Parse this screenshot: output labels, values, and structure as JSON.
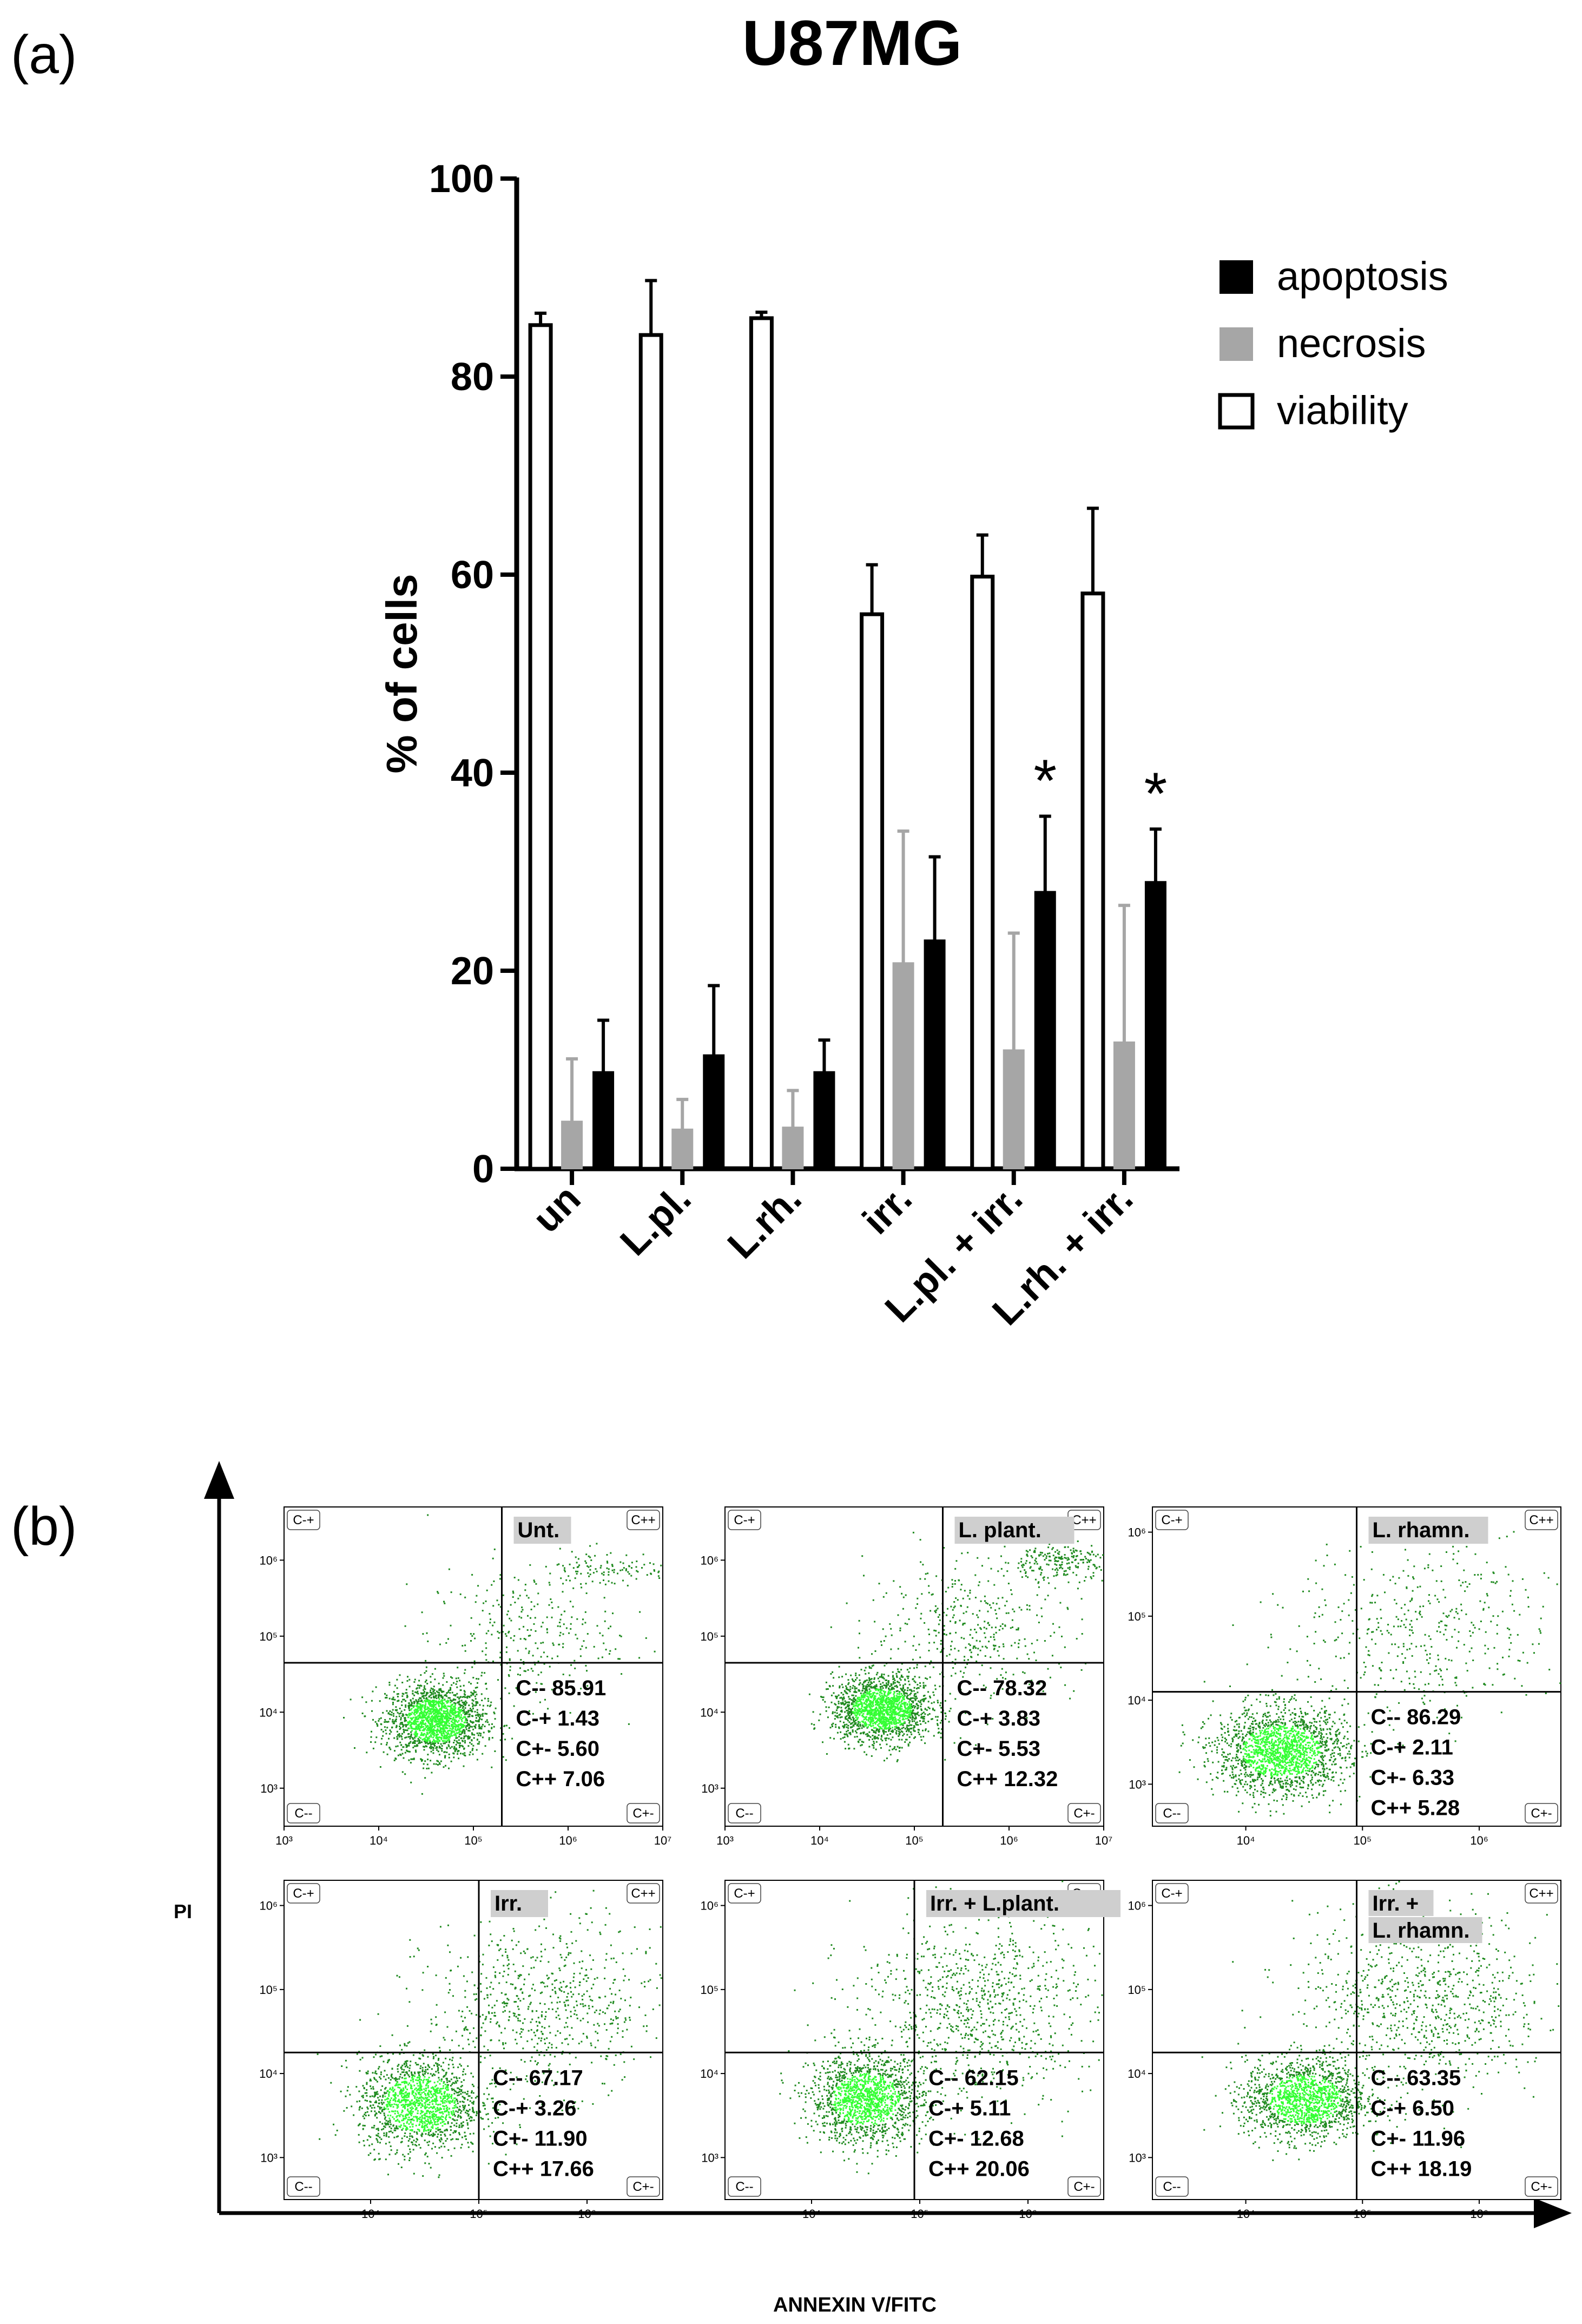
{
  "figure": {
    "panel_a_letter": "(a)",
    "panel_b_letter": "(b)"
  },
  "chart_data": [
    {
      "type": "bar",
      "title": "U87MG",
      "xlabel": "",
      "ylabel": "% of cells",
      "ylim": [
        0,
        100
      ],
      "yticks": [
        0,
        20,
        40,
        60,
        80,
        100
      ],
      "categories": [
        "un",
        "L.pl.",
        "L.rh.",
        "irr.",
        "L.pl. + irr.",
        "L.rh. + irr."
      ],
      "legend_position": "top-right",
      "series": [
        {
          "name": "viability",
          "color": "#ffffff",
          "values": [
            85.2,
            84.2,
            85.9,
            56.0,
            59.8,
            58.1
          ],
          "errors": [
            1.2,
            5.5,
            0.6,
            5.0,
            4.2,
            8.6
          ]
        },
        {
          "name": "necrosis",
          "color": "#a6a6a6",
          "values": [
            4.8,
            4.0,
            4.2,
            20.8,
            12.0,
            12.8
          ],
          "errors": [
            6.3,
            3.0,
            3.7,
            13.3,
            11.8,
            13.8
          ]
        },
        {
          "name": "apoptosis",
          "color": "#000000",
          "values": [
            9.8,
            11.5,
            9.8,
            23.1,
            28.0,
            29.0
          ],
          "errors": [
            5.2,
            7.0,
            3.2,
            8.4,
            7.6,
            5.3
          ]
        }
      ],
      "legend_order": [
        "apoptosis",
        "necrosis",
        "viability"
      ],
      "significance": [
        {
          "category": "L.pl. + irr.",
          "series": "apoptosis",
          "label": "*"
        },
        {
          "category": "L.rh. + irr.",
          "series": "apoptosis",
          "label": "*"
        }
      ]
    },
    {
      "type": "scatter",
      "xlabel": "ANNEXIN V/FITC",
      "ylabel": "PI",
      "quadrant_labels": {
        "tl": "C-+",
        "tr": "C++",
        "bl": "C--",
        "br": "C+-"
      },
      "panels": [
        {
          "title": "Unt.",
          "stats": [
            "C-- 85.91",
            "C-+ 1.43",
            "C+- 5.60",
            "C++ 7.06"
          ],
          "x_ticks": [
            "10³",
            "10⁴",
            "10⁵",
            "10⁶",
            "10⁷"
          ],
          "y_ticks": [
            "10⁶",
            "10⁵",
            "10⁴",
            "10³"
          ],
          "xlog_range": [
            3,
            7
          ],
          "ylog_range": [
            2.5,
            6.7
          ],
          "gate": [
            5.3,
            4.65
          ],
          "clusters": [
            {
              "x": 4.6,
              "y": 3.9,
              "sx": 0.26,
              "sy": 0.24,
              "n": 1800
            },
            {
              "x": 6.4,
              "y": 5.9,
              "sx": 0.35,
              "sy": 0.12,
              "n": 120
            },
            {
              "x": 5.5,
              "y": 5.0,
              "sx": 0.5,
              "sy": 0.45,
              "n": 300
            }
          ]
        },
        {
          "title": "L. plant.",
          "stats": [
            "C-- 78.32",
            "C-+ 3.83",
            "C+- 5.53",
            "C++ 12.32"
          ],
          "x_ticks": [
            "10³",
            "10⁴",
            "10⁵",
            "10⁶",
            "10⁷"
          ],
          "y_ticks": [
            "10⁶",
            "10⁵",
            "10⁴",
            "10³"
          ],
          "xlog_range": [
            3,
            7
          ],
          "ylog_range": [
            2.5,
            6.7
          ],
          "gate": [
            5.3,
            4.65
          ],
          "clusters": [
            {
              "x": 4.65,
              "y": 4.05,
              "sx": 0.26,
              "sy": 0.22,
              "n": 1700
            },
            {
              "x": 6.5,
              "y": 6.0,
              "sx": 0.3,
              "sy": 0.12,
              "n": 220
            },
            {
              "x": 5.6,
              "y": 5.1,
              "sx": 0.55,
              "sy": 0.45,
              "n": 400
            }
          ]
        },
        {
          "title": "L. rhamn.",
          "stats": [
            "C-- 86.29",
            "C-+ 2.11",
            "C+- 6.33",
            "C++ 5.28"
          ],
          "x_ticks": [
            "10⁴",
            "10⁵",
            "10⁶"
          ],
          "y_ticks": [
            "10⁶",
            "10⁵",
            "10⁴",
            "10³"
          ],
          "xlog_range": [
            3.2,
            6.7
          ],
          "ylog_range": [
            2.5,
            6.3
          ],
          "gate": [
            4.95,
            4.1
          ],
          "clusters": [
            {
              "x": 4.3,
              "y": 3.4,
              "sx": 0.28,
              "sy": 0.26,
              "n": 1800
            },
            {
              "x": 5.5,
              "y": 4.8,
              "sx": 0.55,
              "sy": 0.55,
              "n": 450
            }
          ]
        },
        {
          "title": "Irr.",
          "stats": [
            "C-- 67.17",
            "C-+ 3.26",
            "C+- 11.90",
            "C++ 17.66"
          ],
          "x_ticks": [
            "10⁴",
            "10⁵",
            "10⁶"
          ],
          "y_ticks": [
            "10⁶",
            "10⁵",
            "10⁴",
            "10³"
          ],
          "xlog_range": [
            3.2,
            6.7
          ],
          "ylog_range": [
            2.5,
            6.3
          ],
          "gate": [
            5.0,
            4.25
          ],
          "clusters": [
            {
              "x": 4.45,
              "y": 3.65,
              "sx": 0.28,
              "sy": 0.28,
              "n": 1500
            },
            {
              "x": 5.6,
              "y": 4.8,
              "sx": 0.55,
              "sy": 0.5,
              "n": 700
            }
          ]
        },
        {
          "title": "Irr. + L.plant.",
          "stats": [
            "C-- 62.15",
            "C-+ 5.11",
            "C+- 12.68",
            "C++ 20.06"
          ],
          "x_ticks": [
            "10⁴",
            "10⁵",
            "10⁶"
          ],
          "y_ticks": [
            "10⁶",
            "10⁵",
            "10⁴",
            "10³"
          ],
          "xlog_range": [
            3.2,
            6.7
          ],
          "ylog_range": [
            2.5,
            6.3
          ],
          "gate": [
            4.95,
            4.25
          ],
          "clusters": [
            {
              "x": 4.5,
              "y": 3.7,
              "sx": 0.26,
              "sy": 0.26,
              "n": 1500
            },
            {
              "x": 5.5,
              "y": 4.8,
              "sx": 0.55,
              "sy": 0.55,
              "n": 900
            }
          ]
        },
        {
          "title": "Irr. + L. rhamn.",
          "stats": [
            "C-- 63.35",
            "C-+ 6.50",
            "C+- 11.96",
            "C++ 18.19"
          ],
          "x_ticks": [
            "10⁴",
            "10⁵",
            "10⁶"
          ],
          "y_ticks": [
            "10⁶",
            "10⁵",
            "10⁴",
            "10³"
          ],
          "xlog_range": [
            3.2,
            6.7
          ],
          "ylog_range": [
            2.5,
            6.3
          ],
          "gate": [
            4.95,
            4.25
          ],
          "clusters": [
            {
              "x": 4.5,
              "y": 3.7,
              "sx": 0.26,
              "sy": 0.24,
              "n": 1500
            },
            {
              "x": 5.5,
              "y": 4.85,
              "sx": 0.55,
              "sy": 0.55,
              "n": 900
            }
          ]
        }
      ]
    }
  ]
}
